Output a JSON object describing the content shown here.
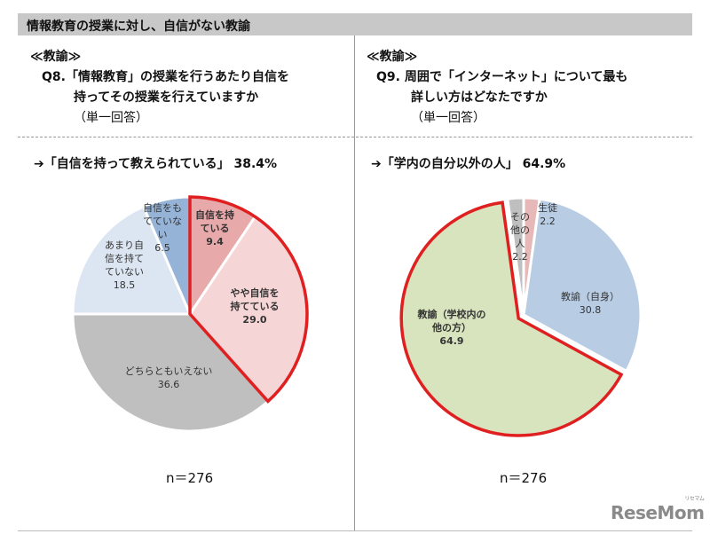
{
  "header": {
    "title": "情報教育の授業に対し、自信がない教諭"
  },
  "left": {
    "tag": "≪教諭≫",
    "question_lines": [
      "Q8.「情報教育」の授業を行うあたり自信を",
      "持ってその授業を行えていますか",
      "（単一回答）"
    ],
    "highlight": "➔「自信を持って教えられている」 38.4%",
    "n": "n＝276"
  },
  "right": {
    "tag": "≪教諭≫",
    "question_lines": [
      "Q9. 周囲で「インターネット」について最も",
      "詳しい方はどなたですか",
      "（単一回答）"
    ],
    "highlight": "➔「学内の自分以外の人」 64.9%",
    "n": "n＝276"
  },
  "colors": {
    "highlight_outline": "#e02020"
  },
  "chart_data": [
    {
      "type": "pie",
      "unit": "%",
      "start": "top",
      "direction": "clockwise",
      "slices": [
        {
          "label_lines": [
            "自信を持",
            "ている"
          ],
          "value": 9.4,
          "color": "#e8a9ab",
          "bold": true,
          "highlighted": true
        },
        {
          "label_lines": [
            "やや自信を",
            "持てている"
          ],
          "value": 29.0,
          "color": "#f6d5d6",
          "bold": true,
          "highlighted": true
        },
        {
          "label_lines": [
            "どちらともいえない"
          ],
          "value": 36.6,
          "color": "#bfbfbf",
          "bold": false,
          "highlighted": false
        },
        {
          "label_lines": [
            "あまり自",
            "信を持て",
            "ていない"
          ],
          "value": 18.5,
          "color": "#dce6f2",
          "bold": false,
          "highlighted": false
        },
        {
          "label_lines": [
            "自信をも",
            "てていな",
            "い"
          ],
          "value": 6.5,
          "color": "#95b3d7",
          "bold": false,
          "highlighted": false
        }
      ]
    },
    {
      "type": "pie",
      "unit": "%",
      "start": "top",
      "direction": "clockwise",
      "slices": [
        {
          "label_lines": [
            "生徒"
          ],
          "value": 2.2,
          "color": "#e6b9b8",
          "bold": false,
          "highlighted": false
        },
        {
          "label_lines": [
            "教諭（自身）"
          ],
          "value": 30.8,
          "color": "#b8cce4",
          "bold": false,
          "highlighted": false
        },
        {
          "label_lines": [
            "教諭（学校内の",
            "他の方）"
          ],
          "value": 64.9,
          "color": "#d7e4bd",
          "bold": true,
          "highlighted": true,
          "exploded": true
        },
        {
          "label_lines": [
            "その",
            "他の",
            "人"
          ],
          "value": 2.2,
          "color": "#bfbfbf",
          "bold": false,
          "highlighted": false
        }
      ]
    }
  ],
  "logo": {
    "text": "ReseMom",
    "sub": "リセマム"
  }
}
